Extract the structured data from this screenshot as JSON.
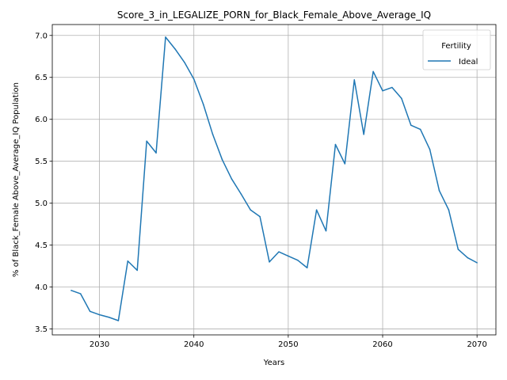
{
  "chart_data": {
    "type": "line",
    "title": "Score_3_in_LEGALIZE_PORN_for_Black_Female_Above_Average_IQ",
    "xlabel": "Years",
    "ylabel": "% of Black_Female Above_Average_IQ Population",
    "xlim": [
      2025,
      2072
    ],
    "ylim": [
      3.43,
      7.13
    ],
    "xticks": [
      2030,
      2040,
      2050,
      2060,
      2070
    ],
    "yticks": [
      3.5,
      4.0,
      4.5,
      5.0,
      5.5,
      6.0,
      6.5,
      7.0
    ],
    "grid": true,
    "legend": {
      "title": "Fertility",
      "placement": "top-right"
    },
    "series": [
      {
        "name": "Ideal",
        "color": "#1f77b4",
        "x": [
          2027,
          2028,
          2029,
          2030,
          2031,
          2032,
          2033,
          2034,
          2035,
          2036,
          2037,
          2038,
          2039,
          2040,
          2041,
          2042,
          2043,
          2044,
          2045,
          2046,
          2047,
          2048,
          2049,
          2050,
          2051,
          2052,
          2053,
          2054,
          2055,
          2056,
          2057,
          2058,
          2059,
          2060,
          2061,
          2062,
          2063,
          2064,
          2065,
          2066,
          2067,
          2068,
          2069,
          2070
        ],
        "y": [
          3.96,
          3.92,
          3.71,
          3.67,
          3.64,
          3.6,
          4.31,
          4.2,
          5.74,
          5.6,
          6.98,
          6.84,
          6.68,
          6.48,
          6.18,
          5.82,
          5.52,
          5.29,
          5.11,
          4.92,
          4.84,
          4.3,
          4.42,
          4.37,
          4.32,
          4.23,
          4.92,
          4.67,
          5.7,
          5.47,
          6.47,
          5.82,
          6.57,
          6.34,
          6.38,
          6.25,
          5.93,
          5.88,
          5.64,
          5.15,
          4.92,
          4.45,
          4.35,
          4.29
        ]
      }
    ]
  }
}
